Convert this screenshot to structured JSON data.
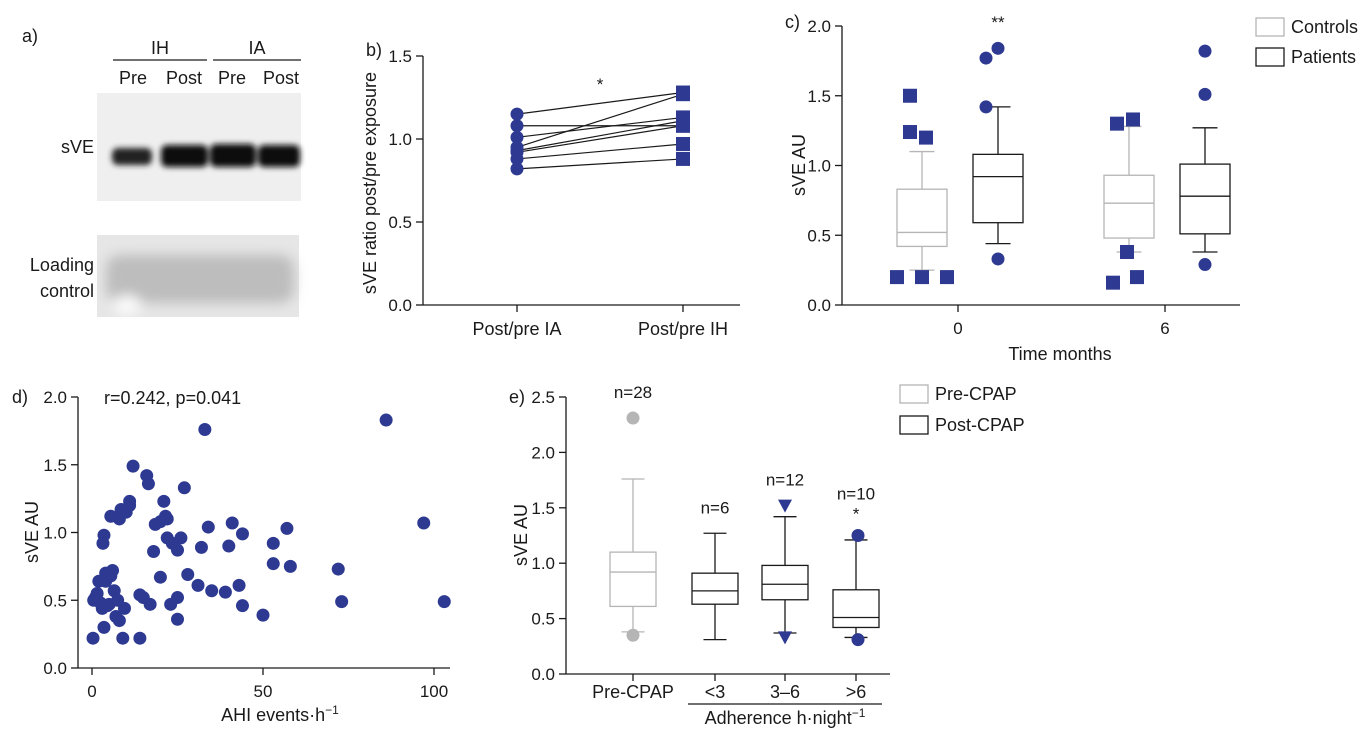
{
  "chart_data": [
    {
      "panel": "a)",
      "type": "table",
      "groups": [
        "IH",
        "IA"
      ],
      "columns": [
        "Pre",
        "Post",
        "Pre",
        "Post"
      ],
      "rows": [
        "sVE",
        "Loading control"
      ]
    },
    {
      "panel": "b)",
      "type": "line",
      "ylabel": "sVE ratio post/pre exposure",
      "ylim": [
        0,
        1.5
      ],
      "yticks": [
        "0.0",
        "0.5",
        "1.0",
        "1.5"
      ],
      "categories": [
        "Post/pre IA",
        "Post/pre IH"
      ],
      "pairs": [
        [
          0.82,
          0.88
        ],
        [
          0.88,
          0.97
        ],
        [
          0.92,
          1.08
        ],
        [
          0.93,
          1.11
        ],
        [
          0.95,
          1.27
        ],
        [
          1.01,
          1.13
        ],
        [
          1.08,
          1.08
        ],
        [
          1.15,
          1.28
        ]
      ],
      "annotation": "*",
      "marker_colors": [
        "#2e3a92",
        "#2e3a92"
      ]
    },
    {
      "panel": "c)",
      "type": "box",
      "xlabel": "Time months",
      "ylabel": "sVE AU",
      "ylim": [
        0,
        2.0
      ],
      "yticks": [
        "0.0",
        "0.5",
        "1.0",
        "1.5",
        "2.0"
      ],
      "categories": [
        "0",
        "6"
      ],
      "legend": [
        "Controls",
        "Patients"
      ],
      "series_colors": [
        "#b5b5b5",
        "#1a1a1a"
      ],
      "marker_color": "#2e3a92",
      "annotations": [
        {
          "group": 0,
          "series": 1,
          "text": "**"
        }
      ],
      "boxes": [
        {
          "group": 0,
          "series": 0,
          "whislo": 0.25,
          "q1": 0.42,
          "med": 0.52,
          "q3": 0.83,
          "whishi": 1.1,
          "outliers": [
            1.5,
            1.24,
            1.2,
            0.2,
            0.2,
            0.2
          ]
        },
        {
          "group": 0,
          "series": 1,
          "whislo": 0.44,
          "q1": 0.59,
          "med": 0.92,
          "q3": 1.08,
          "whishi": 1.42,
          "outliers": [
            1.84,
            1.77,
            1.42,
            0.33
          ]
        },
        {
          "group": 1,
          "series": 0,
          "whislo": 0.38,
          "q1": 0.48,
          "med": 0.73,
          "q3": 0.93,
          "whishi": 1.28,
          "outliers": [
            1.3,
            1.33,
            0.38,
            0.2,
            0.16
          ]
        },
        {
          "group": 1,
          "series": 1,
          "whislo": 0.38,
          "q1": 0.51,
          "med": 0.78,
          "q3": 1.01,
          "whishi": 1.27,
          "outliers": [
            1.82,
            1.51,
            0.29
          ]
        }
      ]
    },
    {
      "panel": "d)",
      "type": "scatter",
      "xlabel": "AHI events·h⁻¹",
      "ylabel": "sVE AU",
      "xlim": [
        0,
        100
      ],
      "ylim": [
        0,
        2.0
      ],
      "xticks": [
        "0",
        "50",
        "100"
      ],
      "yticks": [
        "0.0",
        "0.5",
        "1.0",
        "1.5",
        "2.0"
      ],
      "annotation": "r=0.242, p=0.041",
      "marker_color": "#2e3a92",
      "points": [
        [
          0.3,
          0.22
        ],
        [
          0.5,
          0.5
        ],
        [
          1,
          0.52
        ],
        [
          1.5,
          0.55
        ],
        [
          2,
          0.64
        ],
        [
          2.5,
          0.48
        ],
        [
          3,
          0.44
        ],
        [
          3.2,
          0.92
        ],
        [
          3.5,
          0.98
        ],
        [
          4,
          0.7
        ],
        [
          4.5,
          0.46
        ],
        [
          3.5,
          0.3
        ],
        [
          4,
          0.64
        ],
        [
          5,
          0.47
        ],
        [
          5.5,
          0.68
        ],
        [
          5.5,
          1.12
        ],
        [
          6,
          0.72
        ],
        [
          6.5,
          0.57
        ],
        [
          7,
          0.38
        ],
        [
          7.5,
          0.5
        ],
        [
          8,
          0.35
        ],
        [
          8,
          1.1
        ],
        [
          8.5,
          1.17
        ],
        [
          9,
          0.22
        ],
        [
          9.5,
          0.44
        ],
        [
          10,
          1.15
        ],
        [
          11,
          1.2
        ],
        [
          11,
          1.23
        ],
        [
          12,
          1.49
        ],
        [
          14,
          0.54
        ],
        [
          14,
          0.22
        ],
        [
          15,
          0.52
        ],
        [
          16,
          1.42
        ],
        [
          16.5,
          1.36
        ],
        [
          17,
          0.47
        ],
        [
          18,
          0.86
        ],
        [
          18.5,
          1.06
        ],
        [
          20,
          1.08
        ],
        [
          20,
          0.67
        ],
        [
          21,
          1.23
        ],
        [
          21.5,
          1.12
        ],
        [
          22,
          1.1
        ],
        [
          22,
          0.96
        ],
        [
          23,
          0.47
        ],
        [
          23.5,
          0.92
        ],
        [
          25,
          0.52
        ],
        [
          25,
          0.36
        ],
        [
          25,
          0.87
        ],
        [
          26,
          0.96
        ],
        [
          27,
          1.33
        ],
        [
          28,
          0.69
        ],
        [
          31,
          0.61
        ],
        [
          32,
          0.89
        ],
        [
          33,
          1.76
        ],
        [
          34,
          1.04
        ],
        [
          35,
          0.57
        ],
        [
          39,
          0.56
        ],
        [
          40,
          0.9
        ],
        [
          41,
          1.07
        ],
        [
          43,
          0.61
        ],
        [
          44,
          0.46
        ],
        [
          44,
          0.99
        ],
        [
          50,
          0.39
        ],
        [
          53,
          0.77
        ],
        [
          53,
          0.92
        ],
        [
          57,
          1.03
        ],
        [
          58,
          0.75
        ],
        [
          72,
          0.73
        ],
        [
          73,
          0.49
        ],
        [
          86,
          1.83
        ],
        [
          97,
          1.07
        ],
        [
          103,
          0.49
        ]
      ]
    },
    {
      "panel": "e)",
      "type": "box",
      "ylabel": "sVE AU",
      "xlabel": "Adherence h·night⁻¹",
      "ylim": [
        0,
        2.5
      ],
      "yticks": [
        "0.0",
        "0.5",
        "1.0",
        "1.5",
        "2.0",
        "2.5"
      ],
      "categories": [
        "Pre-CPAP",
        "<3",
        "3–6",
        ">6"
      ],
      "legend": [
        "Pre-CPAP",
        "Post-CPAP"
      ],
      "series_colors": [
        "#b5b5b5",
        "#1a1a1a"
      ],
      "marker_colors": [
        "#b5b5b5",
        "#2e3a92"
      ],
      "boxes": [
        {
          "label": "n=28",
          "series": 0,
          "whislo": 0.38,
          "q1": 0.61,
          "med": 0.92,
          "q3": 1.1,
          "whishi": 1.76,
          "outliers": [
            2.31,
            0.35
          ],
          "marker": "circle"
        },
        {
          "label": "n=6",
          "series": 1,
          "whislo": 0.31,
          "q1": 0.63,
          "med": 0.75,
          "q3": 0.91,
          "whishi": 1.27,
          "outliers": [],
          "marker": "circle"
        },
        {
          "label": "n=12",
          "series": 1,
          "whislo": 0.37,
          "q1": 0.67,
          "med": 0.81,
          "q3": 0.98,
          "whishi": 1.42,
          "outliers": [
            1.52,
            0.33
          ],
          "marker": "triangle"
        },
        {
          "label": "n=10",
          "series": 1,
          "whislo": 0.33,
          "q1": 0.42,
          "med": 0.51,
          "q3": 0.76,
          "whishi": 1.21,
          "outliers": [
            1.25,
            0.31
          ],
          "marker": "circle",
          "annotation": "*"
        }
      ]
    }
  ]
}
